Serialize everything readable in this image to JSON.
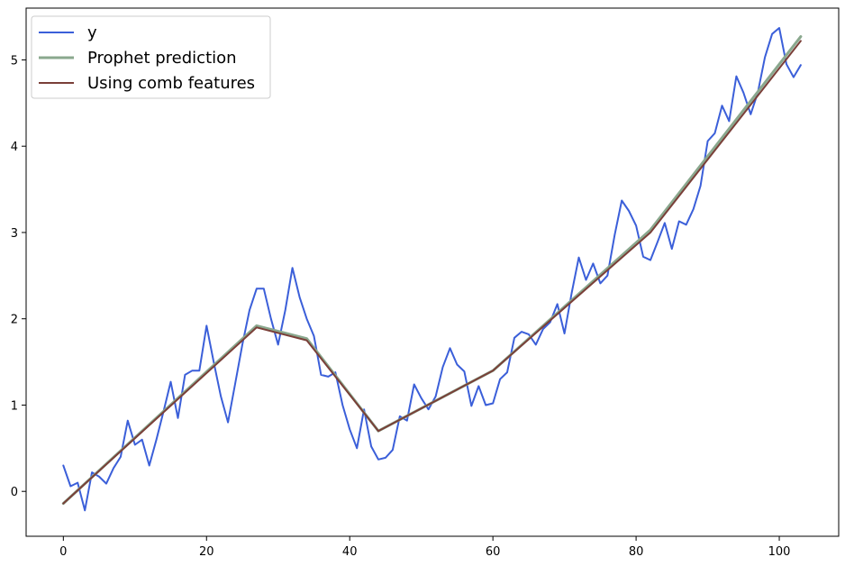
{
  "chart_data": {
    "type": "line",
    "title": "",
    "xlabel": "",
    "ylabel": "",
    "xlim": [
      -5.2,
      108.3
    ],
    "ylim": [
      -0.52,
      5.6
    ],
    "x_ticks": [
      0,
      20,
      40,
      60,
      80,
      100
    ],
    "y_ticks": [
      0,
      1,
      2,
      3,
      4,
      5
    ],
    "grid": false,
    "legend_position": "top-left",
    "series": [
      {
        "name": "y",
        "color": "#3b5fd9",
        "x": [
          0,
          1,
          2,
          3,
          4,
          5,
          6,
          7,
          8,
          9,
          10,
          11,
          12,
          13,
          14,
          15,
          16,
          17,
          18,
          19,
          20,
          21,
          22,
          23,
          24,
          25,
          26,
          27,
          28,
          29,
          30,
          31,
          32,
          33,
          34,
          35,
          36,
          37,
          38,
          39,
          40,
          41,
          42,
          43,
          44,
          45,
          46,
          47,
          48,
          49,
          50,
          51,
          52,
          53,
          54,
          55,
          56,
          57,
          58,
          59,
          60,
          61,
          62,
          63,
          64,
          65,
          66,
          67,
          68,
          69,
          70,
          71,
          72,
          73,
          74,
          75,
          76,
          77,
          78,
          79,
          80,
          81,
          82,
          83,
          84,
          85,
          86,
          87,
          88,
          89,
          90,
          91,
          92,
          93,
          94,
          95,
          96,
          97,
          98,
          99,
          100,
          101,
          102,
          103
        ],
        "values": [
          0.3,
          0.06,
          0.1,
          -0.22,
          0.22,
          0.17,
          0.09,
          0.27,
          0.4,
          0.82,
          0.54,
          0.6,
          0.3,
          0.6,
          0.93,
          1.27,
          0.85,
          1.35,
          1.4,
          1.4,
          1.92,
          1.5,
          1.1,
          0.8,
          1.25,
          1.7,
          2.1,
          2.35,
          2.35,
          2.0,
          1.7,
          2.1,
          2.59,
          2.25,
          2.0,
          1.8,
          1.35,
          1.33,
          1.38,
          1.0,
          0.72,
          0.5,
          0.95,
          0.52,
          0.37,
          0.39,
          0.48,
          0.87,
          0.82,
          1.24,
          1.08,
          0.95,
          1.1,
          1.44,
          1.66,
          1.47,
          1.39,
          0.99,
          1.22,
          1.0,
          1.02,
          1.3,
          1.38,
          1.78,
          1.85,
          1.82,
          1.7,
          1.88,
          1.96,
          2.17,
          1.83,
          2.3,
          2.71,
          2.45,
          2.64,
          2.41,
          2.5,
          2.97,
          3.37,
          3.25,
          3.08,
          2.72,
          2.68,
          2.89,
          3.11,
          2.81,
          3.13,
          3.09,
          3.27,
          3.54,
          4.06,
          4.15,
          4.47,
          4.29,
          4.81,
          4.62,
          4.37,
          4.62,
          5.03,
          5.3,
          5.37,
          4.95,
          4.8,
          4.94
        ]
      },
      {
        "name": "Prophet prediction",
        "color": "#8aa88e",
        "x": [
          0,
          27,
          34,
          44,
          60,
          82,
          103
        ],
        "values": [
          -0.14,
          1.92,
          1.77,
          0.7,
          1.4,
          3.03,
          5.27
        ]
      },
      {
        "name": "Using comb features",
        "color": "#7a3f38",
        "x": [
          0,
          27,
          34,
          44,
          60,
          82,
          103
        ],
        "values": [
          -0.14,
          1.9,
          1.75,
          0.7,
          1.4,
          3.0,
          5.22
        ]
      }
    ]
  }
}
